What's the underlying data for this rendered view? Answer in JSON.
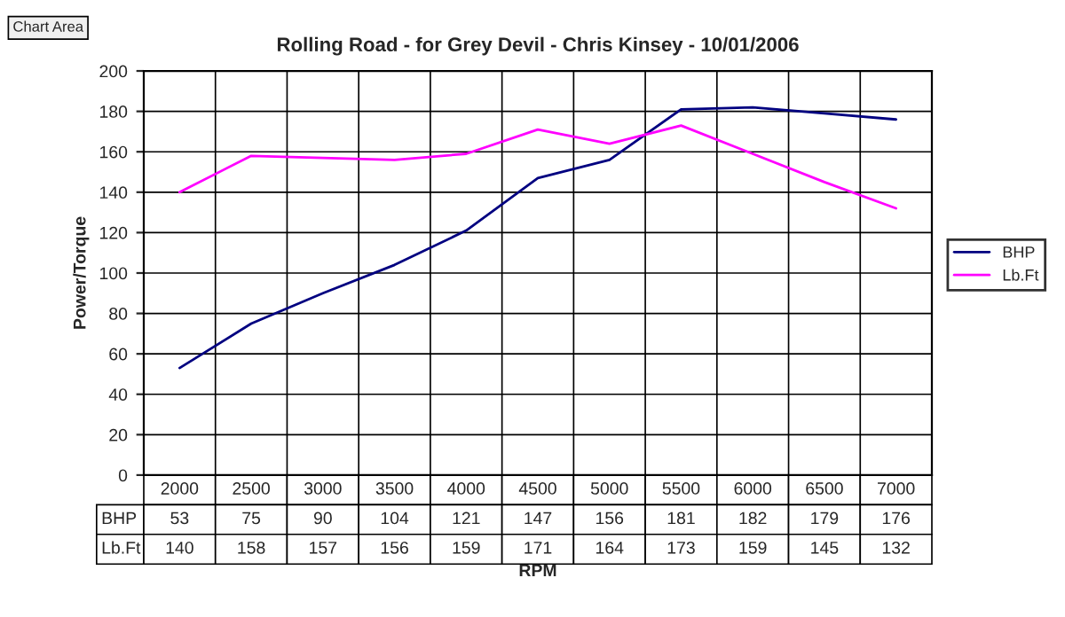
{
  "chart_data": {
    "type": "line",
    "title": "Rolling Road - for Grey Devil - Chris Kinsey - 10/01/2006",
    "xlabel": "RPM",
    "ylabel": "Power/Torque",
    "annotations": [
      "Chart Area"
    ],
    "categories": [
      "2000",
      "2500",
      "3000",
      "3500",
      "4000",
      "4500",
      "5000",
      "5500",
      "6000",
      "6500",
      "7000"
    ],
    "series": [
      {
        "name": "BHP",
        "color": "#000080",
        "values": [
          53,
          75,
          90,
          104,
          121,
          147,
          156,
          181,
          182,
          179,
          176
        ]
      },
      {
        "name": "Lb.Ft",
        "color": "#ff00ff",
        "values": [
          140,
          158,
          157,
          156,
          159,
          171,
          164,
          173,
          159,
          145,
          132
        ]
      }
    ],
    "ylim": [
      0,
      200
    ],
    "yticks": [
      0,
      20,
      40,
      60,
      80,
      100,
      120,
      140,
      160,
      180,
      200
    ],
    "grid": true,
    "legend": "right",
    "data_labels": true,
    "tick_labels": "y",
    "marker": "none",
    "line_style": "solid"
  }
}
